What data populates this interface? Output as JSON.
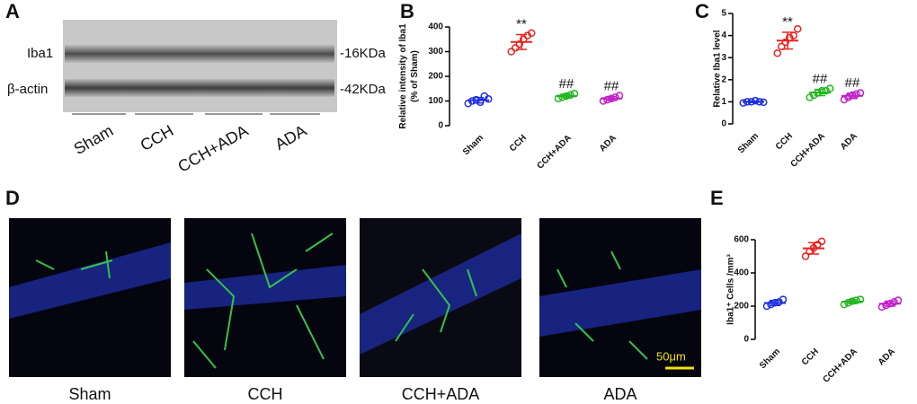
{
  "blot": {
    "label": "A",
    "rows": [
      "Iba1",
      "β-actin"
    ],
    "sizes": [
      "-16KDa",
      "-42KDa"
    ],
    "lanes": [
      "Sham",
      "CCH",
      "CCH+ADA",
      "ADA"
    ]
  },
  "micrographs": {
    "label": "D",
    "panels": [
      "Sham",
      "CCH",
      "CCH+ADA",
      "ADA"
    ],
    "scale_bar": "50μm"
  },
  "chart_data": [
    {
      "type": "dotplot",
      "label": "B",
      "ylabel": [
        "Relative intensity of Iba1",
        "(% of Sham)"
      ],
      "categories": [
        "Sham",
        "CCH",
        "CCH+ADA",
        "ADA"
      ],
      "colors": [
        "#1f2ee0",
        "#e8231f",
        "#22b51e",
        "#c020c8"
      ],
      "points": [
        [
          90,
          100,
          105,
          95,
          120,
          108
        ],
        [
          300,
          315,
          330,
          350,
          365,
          375
        ],
        [
          110,
          115,
          120,
          125,
          130
        ],
        [
          100,
          105,
          110,
          115,
          122
        ]
      ],
      "means": [
        103,
        339,
        120,
        110
      ],
      "sd": [
        11,
        30,
        8,
        8
      ],
      "annotations": [
        null,
        "**",
        "##",
        "##"
      ],
      "ylim": [
        0,
        400
      ],
      "yticks": [
        0,
        100,
        200,
        300,
        400
      ]
    },
    {
      "type": "dotplot",
      "label": "C",
      "ylabel": [
        "Relative Iba1 level"
      ],
      "categories": [
        "Sham",
        "CCH",
        "CCH+ADA",
        "ADA"
      ],
      "colors": [
        "#1f2ee0",
        "#e8231f",
        "#22b51e",
        "#c020c8"
      ],
      "points": [
        [
          0.95,
          1.0,
          1.0,
          1.05,
          1.0,
          0.98
        ],
        [
          3.2,
          3.5,
          3.7,
          3.9,
          4.0,
          4.3
        ],
        [
          1.2,
          1.3,
          1.4,
          1.5,
          1.5,
          1.6
        ],
        [
          1.1,
          1.2,
          1.3,
          1.35,
          1.4
        ]
      ],
      "means": [
        1.0,
        3.77,
        1.42,
        1.27
      ],
      "sd": [
        0.03,
        0.38,
        0.14,
        0.12
      ],
      "annotations": [
        null,
        "**",
        "##",
        "##"
      ],
      "ylim": [
        0,
        5
      ],
      "yticks": [
        0,
        1,
        2,
        3,
        4,
        5
      ]
    },
    {
      "type": "dotplot",
      "label": "E",
      "ylabel": [
        "Iba1⁺ Cells /mm³"
      ],
      "categories": [
        "Sham",
        "CCH",
        "CCH+ADA",
        "ADA"
      ],
      "colors": [
        "#1f2ee0",
        "#e8231f",
        "#22b51e",
        "#c020c8"
      ],
      "points": [
        [
          200,
          210,
          220,
          225,
          240
        ],
        [
          500,
          530,
          550,
          570,
          590
        ],
        [
          210,
          220,
          230,
          235,
          240
        ],
        [
          195,
          205,
          215,
          225,
          235
        ]
      ],
      "means": [
        219,
        548,
        227,
        215
      ],
      "sd": [
        15,
        34,
        12,
        15
      ],
      "annotations": [
        null,
        null,
        null,
        null
      ],
      "ylim": [
        0,
        600
      ],
      "yticks": [
        0,
        200,
        400,
        600
      ]
    }
  ]
}
